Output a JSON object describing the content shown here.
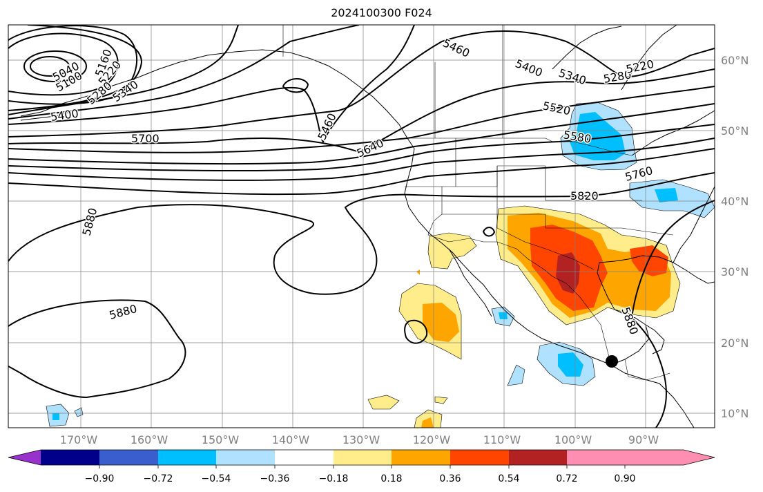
{
  "title": "2024100300 F024",
  "lon_labels": [
    "170°W",
    "160°W",
    "150°W",
    "140°W",
    "130°W",
    "120°W",
    "110°W",
    "100°W",
    "90°W"
  ],
  "lat_labels": [
    "60°N",
    "50°N",
    "40°N",
    "30°N",
    "20°N",
    "10°N"
  ],
  "contour_labels": [
    "5040",
    "5100",
    "5160",
    "5220",
    "5280",
    "5340",
    "5400",
    "5460",
    "5700",
    "5640",
    "5880",
    "5880",
    "5460",
    "5400",
    "5340",
    "5280",
    "5220",
    "5520",
    "5580",
    "5760",
    "5820",
    "5880"
  ],
  "colorbar": {
    "tick_labels": [
      "−0.90",
      "−0.72",
      "−0.54",
      "−0.36",
      "−0.18",
      "0.18",
      "0.36",
      "0.54",
      "0.72",
      "0.90"
    ],
    "colors": [
      "#9932cc",
      "#00008b",
      "#3a5fcd",
      "#00bfff",
      "#b0e2ff",
      "#ffffff",
      "#ffec8b",
      "#ffa500",
      "#ff4500",
      "#b22222",
      "#ff8fb2"
    ]
  },
  "shading_colors": {
    "neg1": "#b0e2ff",
    "neg2": "#00bfff",
    "pos1": "#ffec8b",
    "pos2": "#ffa500",
    "pos3": "#ff4500",
    "pos4": "#b22222"
  }
}
